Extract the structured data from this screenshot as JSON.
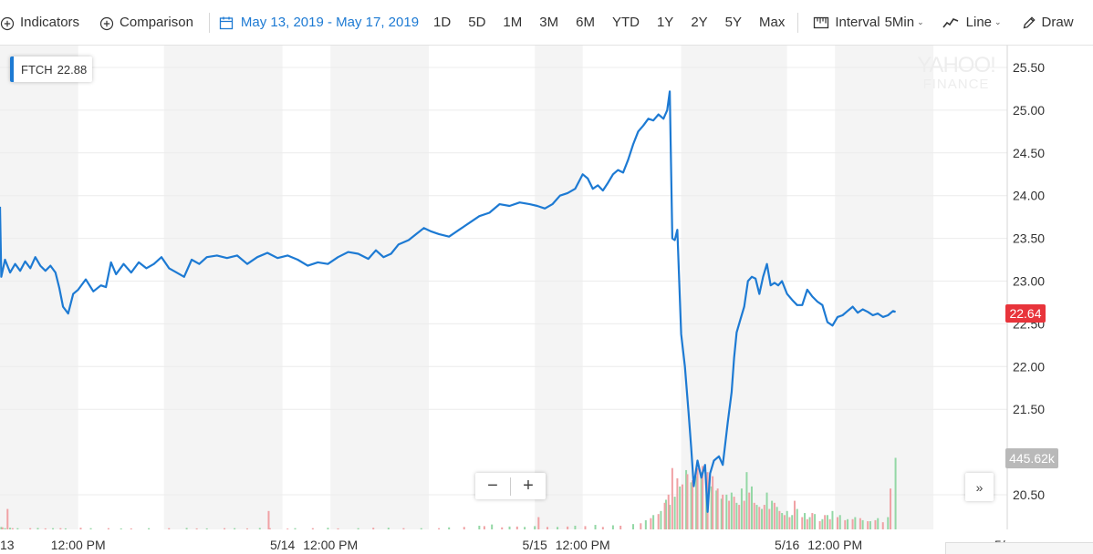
{
  "toolbar": {
    "indicators_label": "Indicators",
    "comparison_label": "Comparison",
    "date_range_label": "May 13, 2019 - May 17, 2019",
    "ranges": [
      "1D",
      "5D",
      "1M",
      "3M",
      "6M",
      "YTD",
      "1Y",
      "2Y",
      "5Y",
      "Max"
    ],
    "interval_prefix": "Interval",
    "interval_value": "5Min",
    "chart_type_label": "Line",
    "draw_label": "Draw"
  },
  "legend": {
    "symbol": "FTCH",
    "value": "22.88"
  },
  "watermark": {
    "line1": "YAHOO!",
    "line2": "FINANCE"
  },
  "zoom": {
    "minus": "−",
    "plus": "+"
  },
  "more_label": "»",
  "price_flag": "22.64",
  "volume_flag": "445.62k",
  "colors": {
    "line": "#1d7ad3",
    "volume_up": "#93d7a5",
    "volume_down": "#f0a1a4",
    "price_flag": "#e8343b",
    "session_shade": "#f4f4f4"
  },
  "chart_data": {
    "type": "line",
    "title": "",
    "xlabel": "",
    "ylabel": "",
    "ylim": [
      20.2,
      25.7
    ],
    "yticks": [
      "25.50",
      "25.00",
      "24.50",
      "24.00",
      "23.50",
      "23.00",
      "22.50",
      "22.00",
      "21.50",
      "20.50"
    ],
    "x_ticks": [
      {
        "label": "13",
        "x": -0.12
      },
      {
        "label": "12:00 PM",
        "x": 0.19
      },
      {
        "label": "5/14",
        "x": 1.0
      },
      {
        "label": "12:00 PM",
        "x": 1.19
      },
      {
        "label": "5/15",
        "x": 2.0
      },
      {
        "label": "12:00 PM",
        "x": 2.19
      },
      {
        "label": "5/16",
        "x": 3.0
      },
      {
        "label": "12:00 PM",
        "x": 3.19
      },
      {
        "label": "5/",
        "x": 3.96
      }
    ],
    "session_bands": [
      [
        -0.12,
        0.19
      ],
      [
        0.53,
        1.0
      ],
      [
        1.19,
        1.58
      ],
      [
        2.0,
        2.19
      ],
      [
        2.58,
        3.0
      ],
      [
        3.19,
        3.58
      ]
    ],
    "series": [
      {
        "points": [
          [
            -0.12,
            23.87
          ],
          [
            -0.115,
            23.05
          ],
          [
            -0.1,
            23.25
          ],
          [
            -0.08,
            23.1
          ],
          [
            -0.06,
            23.2
          ],
          [
            -0.04,
            23.12
          ],
          [
            -0.02,
            23.23
          ],
          [
            0.0,
            23.15
          ],
          [
            0.02,
            23.28
          ],
          [
            0.04,
            23.18
          ],
          [
            0.06,
            23.12
          ],
          [
            0.08,
            23.18
          ],
          [
            0.1,
            23.1
          ],
          [
            0.115,
            22.92
          ],
          [
            0.13,
            22.7
          ],
          [
            0.15,
            22.62
          ],
          [
            0.17,
            22.85
          ],
          [
            0.19,
            22.9
          ],
          [
            0.22,
            23.02
          ],
          [
            0.25,
            22.88
          ],
          [
            0.28,
            22.95
          ],
          [
            0.3,
            22.93
          ],
          [
            0.32,
            23.22
          ],
          [
            0.34,
            23.08
          ],
          [
            0.37,
            23.2
          ],
          [
            0.4,
            23.1
          ],
          [
            0.43,
            23.22
          ],
          [
            0.46,
            23.15
          ],
          [
            0.49,
            23.2
          ],
          [
            0.52,
            23.28
          ],
          [
            0.55,
            23.15
          ],
          [
            0.58,
            23.1
          ],
          [
            0.61,
            23.05
          ],
          [
            0.64,
            23.25
          ],
          [
            0.67,
            23.2
          ],
          [
            0.7,
            23.28
          ],
          [
            0.74,
            23.3
          ],
          [
            0.78,
            23.27
          ],
          [
            0.82,
            23.3
          ],
          [
            0.86,
            23.2
          ],
          [
            0.9,
            23.28
          ],
          [
            0.94,
            23.33
          ],
          [
            0.98,
            23.27
          ],
          [
            1.02,
            23.3
          ],
          [
            1.06,
            23.25
          ],
          [
            1.1,
            23.18
          ],
          [
            1.14,
            23.22
          ],
          [
            1.18,
            23.2
          ],
          [
            1.22,
            23.28
          ],
          [
            1.26,
            23.34
          ],
          [
            1.3,
            23.32
          ],
          [
            1.34,
            23.26
          ],
          [
            1.37,
            23.36
          ],
          [
            1.4,
            23.28
          ],
          [
            1.43,
            23.32
          ],
          [
            1.46,
            23.43
          ],
          [
            1.5,
            23.48
          ],
          [
            1.53,
            23.55
          ],
          [
            1.56,
            23.62
          ],
          [
            1.59,
            23.58
          ],
          [
            1.62,
            23.55
          ],
          [
            1.66,
            23.52
          ],
          [
            1.7,
            23.6
          ],
          [
            1.74,
            23.68
          ],
          [
            1.78,
            23.76
          ],
          [
            1.82,
            23.8
          ],
          [
            1.86,
            23.9
          ],
          [
            1.9,
            23.88
          ],
          [
            1.94,
            23.92
          ],
          [
            1.98,
            23.9
          ],
          [
            2.01,
            23.88
          ],
          [
            2.04,
            23.85
          ],
          [
            2.07,
            23.9
          ],
          [
            2.1,
            24.0
          ],
          [
            2.13,
            24.03
          ],
          [
            2.16,
            24.08
          ],
          [
            2.19,
            24.25
          ],
          [
            2.21,
            24.2
          ],
          [
            2.23,
            24.08
          ],
          [
            2.25,
            24.12
          ],
          [
            2.27,
            24.06
          ],
          [
            2.29,
            24.15
          ],
          [
            2.31,
            24.25
          ],
          [
            2.33,
            24.3
          ],
          [
            2.35,
            24.27
          ],
          [
            2.37,
            24.42
          ],
          [
            2.39,
            24.6
          ],
          [
            2.41,
            24.75
          ],
          [
            2.43,
            24.82
          ],
          [
            2.45,
            24.9
          ],
          [
            2.47,
            24.88
          ],
          [
            2.49,
            24.95
          ],
          [
            2.51,
            24.9
          ],
          [
            2.525,
            25.0
          ],
          [
            2.535,
            25.22
          ],
          [
            2.545,
            23.5
          ],
          [
            2.555,
            23.48
          ],
          [
            2.565,
            23.6
          ],
          [
            2.58,
            22.38
          ],
          [
            2.595,
            22.0
          ],
          [
            2.61,
            21.45
          ],
          [
            2.62,
            21.05
          ],
          [
            2.63,
            20.6
          ],
          [
            2.645,
            20.9
          ],
          [
            2.66,
            20.7
          ],
          [
            2.675,
            20.85
          ],
          [
            2.685,
            20.3
          ],
          [
            2.695,
            20.75
          ],
          [
            2.71,
            20.9
          ],
          [
            2.73,
            20.95
          ],
          [
            2.745,
            20.85
          ],
          [
            2.765,
            21.35
          ],
          [
            2.78,
            21.7
          ],
          [
            2.79,
            22.1
          ],
          [
            2.8,
            22.4
          ],
          [
            2.815,
            22.55
          ],
          [
            2.83,
            22.7
          ],
          [
            2.845,
            23.0
          ],
          [
            2.86,
            23.05
          ],
          [
            2.875,
            23.03
          ],
          [
            2.89,
            22.85
          ],
          [
            2.905,
            23.05
          ],
          [
            2.92,
            23.2
          ],
          [
            2.935,
            22.95
          ],
          [
            2.95,
            22.98
          ],
          [
            2.965,
            22.95
          ],
          [
            2.98,
            23.0
          ],
          [
            3.0,
            22.85
          ],
          [
            3.02,
            22.78
          ],
          [
            3.04,
            22.72
          ],
          [
            3.06,
            22.72
          ],
          [
            3.08,
            22.9
          ],
          [
            3.1,
            22.82
          ],
          [
            3.12,
            22.76
          ],
          [
            3.14,
            22.72
          ],
          [
            3.16,
            22.52
          ],
          [
            3.18,
            22.48
          ],
          [
            3.2,
            22.58
          ],
          [
            3.22,
            22.6
          ],
          [
            3.24,
            22.65
          ],
          [
            3.26,
            22.7
          ],
          [
            3.28,
            22.63
          ],
          [
            3.3,
            22.67
          ],
          [
            3.32,
            22.64
          ],
          [
            3.34,
            22.6
          ],
          [
            3.36,
            22.62
          ],
          [
            3.38,
            22.58
          ],
          [
            3.4,
            22.6
          ],
          [
            3.42,
            22.65
          ],
          [
            3.43,
            22.64
          ]
        ]
      }
    ],
    "volume": {
      "ylim": [
        0,
        445.62
      ],
      "up_bars": [
        [
          -0.115,
          12
        ],
        [
          -0.1,
          6
        ],
        [
          -0.08,
          8
        ],
        [
          -0.05,
          6
        ],
        [
          0.03,
          7
        ],
        [
          0.09,
          6
        ],
        [
          0.14,
          5
        ],
        [
          0.24,
          6
        ],
        [
          0.36,
          5
        ],
        [
          0.47,
          6
        ],
        [
          0.62,
          7
        ],
        [
          0.7,
          5
        ],
        [
          0.81,
          6
        ],
        [
          0.91,
          7
        ],
        [
          1.05,
          6
        ],
        [
          1.18,
          8
        ],
        [
          1.3,
          6
        ],
        [
          1.42,
          8
        ],
        [
          1.55,
          6
        ],
        [
          1.66,
          10
        ],
        [
          1.78,
          18
        ],
        [
          1.83,
          24
        ],
        [
          1.9,
          14
        ],
        [
          1.96,
          12
        ],
        [
          2.0,
          16
        ],
        [
          2.09,
          12
        ],
        [
          2.16,
          18
        ],
        [
          2.24,
          22
        ],
        [
          2.31,
          20
        ],
        [
          2.39,
          26
        ],
        [
          2.44,
          45
        ],
        [
          2.47,
          70
        ],
        [
          2.5,
          90
        ],
        [
          2.52,
          145
        ],
        [
          2.535,
          120
        ],
        [
          2.555,
          160
        ],
        [
          2.575,
          210
        ],
        [
          2.6,
          290
        ],
        [
          2.62,
          230
        ],
        [
          2.64,
          260
        ],
        [
          2.66,
          280
        ],
        [
          2.68,
          240
        ],
        [
          2.7,
          210
        ],
        [
          2.72,
          190
        ],
        [
          2.74,
          150
        ],
        [
          2.76,
          170
        ],
        [
          2.78,
          180
        ],
        [
          2.8,
          130
        ],
        [
          2.82,
          200
        ],
        [
          2.84,
          280
        ],
        [
          2.86,
          210
        ],
        [
          2.88,
          120
        ],
        [
          2.9,
          100
        ],
        [
          2.92,
          180
        ],
        [
          2.94,
          140
        ],
        [
          2.96,
          110
        ],
        [
          2.98,
          80
        ],
        [
          3.0,
          90
        ],
        [
          3.02,
          70
        ],
        [
          3.04,
          100
        ],
        [
          3.07,
          80
        ],
        [
          3.09,
          60
        ],
        [
          3.11,
          75
        ],
        [
          3.14,
          50
        ],
        [
          3.16,
          70
        ],
        [
          3.18,
          90
        ],
        [
          3.21,
          70
        ],
        [
          3.24,
          50
        ],
        [
          3.27,
          60
        ],
        [
          3.3,
          45
        ],
        [
          3.33,
          40
        ],
        [
          3.36,
          55
        ],
        [
          3.4,
          60
        ],
        [
          3.43,
          350
        ]
      ],
      "down_bars": [
        [
          -0.11,
          10
        ],
        [
          -0.07,
          6
        ],
        [
          0.0,
          6
        ],
        [
          0.06,
          5
        ],
        [
          0.12,
          6
        ],
        [
          0.2,
          8
        ],
        [
          0.31,
          6
        ],
        [
          0.4,
          5
        ],
        [
          0.55,
          6
        ],
        [
          0.66,
          5
        ],
        [
          0.77,
          6
        ],
        [
          0.86,
          5
        ],
        [
          0.95,
          6
        ],
        [
          1.02,
          4
        ],
        [
          1.12,
          6
        ],
        [
          1.22,
          5
        ],
        [
          1.36,
          8
        ],
        [
          1.48,
          6
        ],
        [
          1.62,
          6
        ],
        [
          1.72,
          12
        ],
        [
          1.8,
          16
        ],
        [
          1.87,
          10
        ],
        [
          1.93,
          14
        ],
        [
          2.05,
          12
        ],
        [
          2.13,
          14
        ],
        [
          2.2,
          16
        ],
        [
          2.27,
          12
        ],
        [
          2.34,
          18
        ],
        [
          2.42,
          30
        ],
        [
          2.46,
          55
        ],
        [
          2.49,
          75
        ],
        [
          2.515,
          130
        ],
        [
          2.53,
          170
        ],
        [
          2.545,
          300
        ],
        [
          2.565,
          250
        ],
        [
          2.585,
          220
        ],
        [
          2.605,
          270
        ],
        [
          2.625,
          240
        ],
        [
          2.645,
          300
        ],
        [
          2.665,
          310
        ],
        [
          2.685,
          280
        ],
        [
          2.705,
          260
        ],
        [
          2.725,
          200
        ],
        [
          2.745,
          170
        ],
        [
          2.77,
          140
        ],
        [
          2.79,
          160
        ],
        [
          2.81,
          120
        ],
        [
          2.83,
          140
        ],
        [
          2.85,
          180
        ],
        [
          2.87,
          130
        ],
        [
          2.89,
          110
        ],
        [
          2.91,
          120
        ],
        [
          2.93,
          100
        ],
        [
          2.95,
          130
        ],
        [
          2.97,
          90
        ],
        [
          2.99,
          70
        ],
        [
          3.01,
          60
        ],
        [
          3.03,
          140
        ],
        [
          3.06,
          60
        ],
        [
          3.08,
          50
        ],
        [
          3.1,
          80
        ],
        [
          3.13,
          40
        ],
        [
          3.15,
          70
        ],
        [
          3.17,
          50
        ],
        [
          3.2,
          60
        ],
        [
          3.23,
          45
        ],
        [
          3.26,
          50
        ],
        [
          3.29,
          55
        ],
        [
          3.32,
          40
        ],
        [
          3.35,
          45
        ],
        [
          3.38,
          35
        ],
        [
          3.41,
          200
        ]
      ],
      "spikes": [
        [
          -0.09,
          100
        ],
        [
          0.945,
          90
        ],
        [
          2.015,
          60
        ]
      ]
    }
  }
}
